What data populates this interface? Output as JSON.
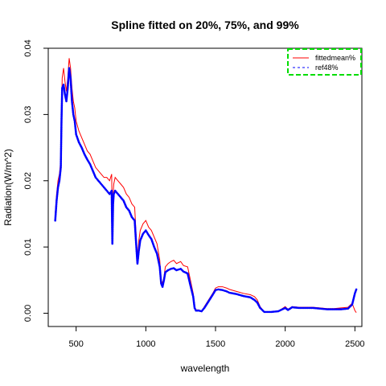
{
  "chart_data": {
    "type": "line",
    "title": "Spline fitted on 20%, 75%, and 99%",
    "xlabel": "wavelength",
    "ylabel": "Radiation(W/m^2)",
    "xlim": [
      300,
      2550
    ],
    "ylim": [
      -0.002,
      0.04
    ],
    "x_ticks": [
      500,
      1000,
      1500,
      2000,
      2500
    ],
    "y_ticks": [
      0.0,
      0.01,
      0.02,
      0.03,
      0.04
    ],
    "x_tick_labels": [
      "500",
      "1000",
      "1500",
      "2000",
      "2500"
    ],
    "y_tick_labels": [
      "0.00",
      "0.01",
      "0.02",
      "0.03",
      "0.04"
    ],
    "legend": {
      "placement": "top-right",
      "border_color": "#00dd00"
    },
    "series": [
      {
        "name": "fittedmean%",
        "style": "line",
        "color": "#ff0000",
        "x": [
          350,
          360,
          370,
          380,
          390,
          395,
          400,
          410,
          420,
          430,
          440,
          450,
          460,
          470,
          480,
          490,
          500,
          520,
          540,
          560,
          580,
          600,
          620,
          640,
          660,
          680,
          700,
          720,
          740,
          755,
          760,
          765,
          770,
          780,
          800,
          820,
          840,
          860,
          880,
          900,
          920,
          935,
          940,
          950,
          960,
          980,
          1000,
          1020,
          1040,
          1060,
          1080,
          1100,
          1110,
          1120,
          1130,
          1140,
          1160,
          1180,
          1200,
          1220,
          1250,
          1270,
          1300,
          1320,
          1340,
          1350,
          1360,
          1380,
          1400,
          1420,
          1450,
          1480,
          1500,
          1520,
          1550,
          1580,
          1600,
          1650,
          1700,
          1750,
          1780,
          1800,
          1820,
          1850,
          1900,
          1950,
          2000,
          2020,
          2050,
          2100,
          2150,
          2200,
          2250,
          2300,
          2350,
          2400,
          2450,
          2480,
          2500,
          2510
        ],
        "y": [
          0.015,
          0.018,
          0.02,
          0.021,
          0.023,
          0.03,
          0.0355,
          0.037,
          0.035,
          0.0335,
          0.0355,
          0.0385,
          0.037,
          0.034,
          0.032,
          0.031,
          0.029,
          0.0275,
          0.0265,
          0.0255,
          0.0245,
          0.024,
          0.023,
          0.022,
          0.0215,
          0.021,
          0.0205,
          0.0205,
          0.02,
          0.021,
          0.012,
          0.018,
          0.0195,
          0.0205,
          0.02,
          0.0195,
          0.019,
          0.018,
          0.0175,
          0.0165,
          0.016,
          0.01,
          0.0085,
          0.011,
          0.0125,
          0.0135,
          0.014,
          0.013,
          0.0125,
          0.0115,
          0.0105,
          0.008,
          0.005,
          0.0045,
          0.0055,
          0.007,
          0.0075,
          0.0078,
          0.008,
          0.0075,
          0.0078,
          0.0072,
          0.007,
          0.005,
          0.003,
          0.001,
          0.0005,
          0.0005,
          0.0003,
          0.001,
          0.002,
          0.003,
          0.0038,
          0.004,
          0.004,
          0.0038,
          0.0036,
          0.0033,
          0.003,
          0.0028,
          0.0025,
          0.002,
          0.001,
          0.0002,
          0.0002,
          0.0003,
          0.001,
          0.0006,
          0.001,
          0.0009,
          0.0009,
          0.0009,
          0.0008,
          0.0007,
          0.0007,
          0.0008,
          0.0009,
          0.0015,
          0.0004,
          0.0001
        ]
      },
      {
        "name": "ref48%",
        "style": "points",
        "color": "#0000ff",
        "x": [
          350,
          360,
          370,
          380,
          390,
          395,
          400,
          410,
          420,
          430,
          440,
          450,
          460,
          470,
          480,
          490,
          500,
          520,
          540,
          560,
          580,
          600,
          620,
          640,
          660,
          680,
          700,
          720,
          740,
          755,
          760,
          765,
          770,
          780,
          800,
          820,
          840,
          860,
          880,
          900,
          920,
          935,
          940,
          950,
          960,
          980,
          1000,
          1020,
          1040,
          1060,
          1080,
          1100,
          1110,
          1120,
          1130,
          1140,
          1160,
          1180,
          1200,
          1220,
          1250,
          1270,
          1300,
          1320,
          1340,
          1350,
          1360,
          1380,
          1400,
          1420,
          1450,
          1480,
          1500,
          1520,
          1550,
          1580,
          1600,
          1650,
          1700,
          1750,
          1780,
          1800,
          1820,
          1850,
          1900,
          1950,
          2000,
          2020,
          2050,
          2100,
          2150,
          2200,
          2250,
          2300,
          2350,
          2400,
          2450,
          2480,
          2500,
          2510
        ],
        "y": [
          0.014,
          0.017,
          0.019,
          0.02,
          0.022,
          0.029,
          0.034,
          0.0345,
          0.033,
          0.032,
          0.034,
          0.037,
          0.0355,
          0.032,
          0.03,
          0.029,
          0.027,
          0.0258,
          0.025,
          0.024,
          0.0232,
          0.0225,
          0.0215,
          0.0205,
          0.02,
          0.0195,
          0.019,
          0.0185,
          0.018,
          0.0185,
          0.0105,
          0.0165,
          0.018,
          0.0185,
          0.018,
          0.0175,
          0.017,
          0.016,
          0.0155,
          0.0145,
          0.014,
          0.009,
          0.0075,
          0.0095,
          0.011,
          0.012,
          0.0125,
          0.0118,
          0.0112,
          0.01,
          0.009,
          0.007,
          0.0045,
          0.004,
          0.005,
          0.0062,
          0.0065,
          0.0067,
          0.0068,
          0.0065,
          0.0067,
          0.0063,
          0.006,
          0.0042,
          0.0025,
          0.0008,
          0.0004,
          0.0004,
          0.0003,
          0.0008,
          0.0018,
          0.0028,
          0.0035,
          0.0036,
          0.0035,
          0.0033,
          0.0031,
          0.0029,
          0.0026,
          0.0024,
          0.002,
          0.0016,
          0.0008,
          0.0002,
          0.0002,
          0.0003,
          0.0008,
          0.0005,
          0.0009,
          0.0008,
          0.0008,
          0.0008,
          0.0007,
          0.0006,
          0.0006,
          0.0006,
          0.0007,
          0.0013,
          0.003,
          0.0036
        ]
      }
    ]
  }
}
